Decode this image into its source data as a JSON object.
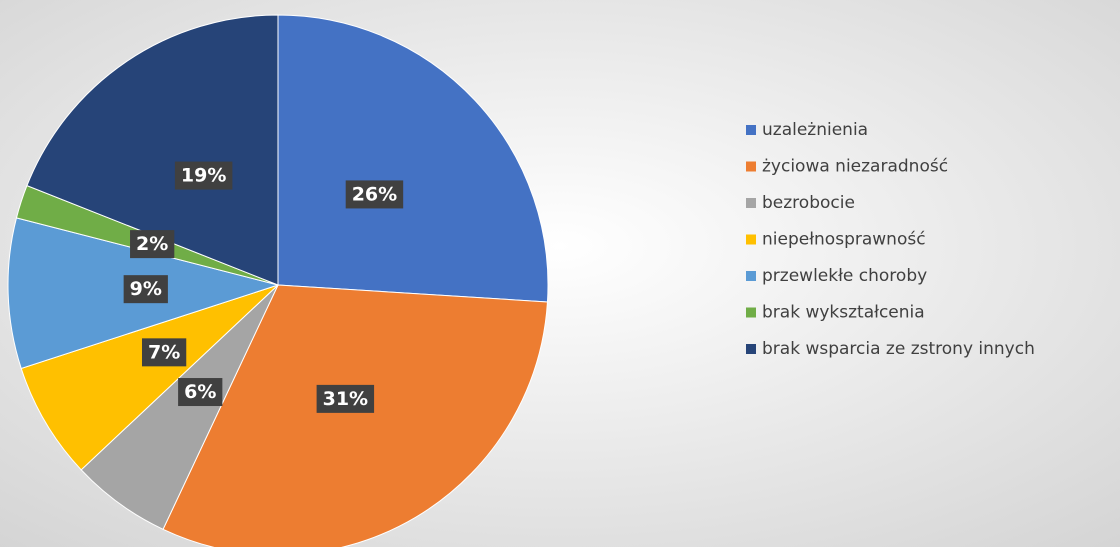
{
  "chart_data": {
    "type": "pie",
    "categories": [
      "uzależnienia",
      "życiowa niezaradność",
      "bezrobocie",
      "niepełnosprawność",
      "przewlekłe choroby",
      "brak wykształcenia",
      "brak wsparcia ze zstrony innych"
    ],
    "values": [
      26,
      31,
      6,
      7,
      9,
      2,
      19
    ],
    "value_labels": [
      "26%",
      "31%",
      "6%",
      "7%",
      "9%",
      "2%",
      "19%"
    ],
    "colors": [
      "#4472c4",
      "#ed7d31",
      "#a5a5a5",
      "#ffc000",
      "#5b9bd5",
      "#70ad47",
      "#264478"
    ],
    "legend": "right"
  }
}
